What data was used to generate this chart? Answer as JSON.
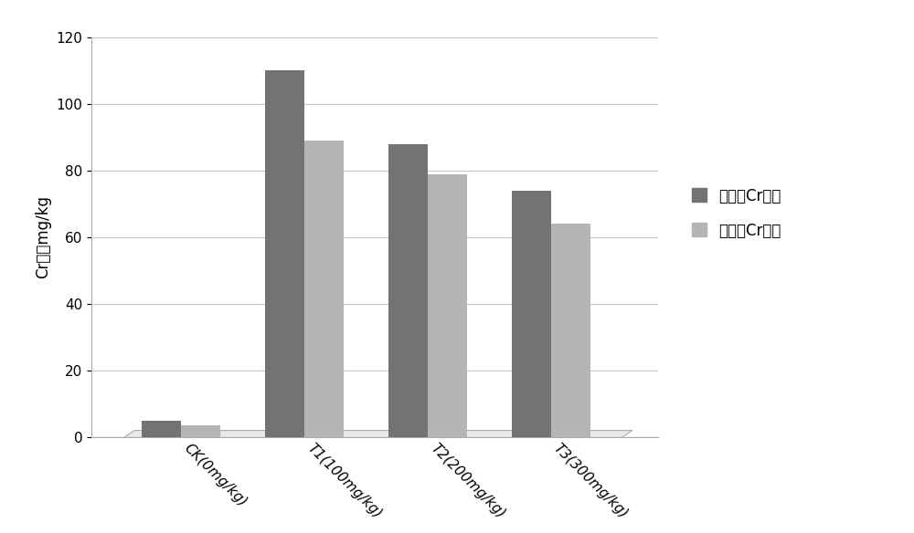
{
  "categories": [
    "CK(0mg/kg)",
    "T1(100mg/kg)",
    "T2(200mg/kg)",
    "T3(300mg/kg)"
  ],
  "series1_label": "地上部Cr含量",
  "series2_label": "地下部Cr含量",
  "series1_values": [
    5.0,
    110.0,
    88.0,
    74.0
  ],
  "series2_values": [
    3.5,
    89.0,
    79.0,
    64.0
  ],
  "series1_color": "#737373",
  "series2_color": "#b5b5b5",
  "ylabel": "Cr含量mg/kg",
  "ylim": [
    0,
    120
  ],
  "yticks": [
    0,
    20,
    40,
    60,
    80,
    100,
    120
  ],
  "background_color": "#ffffff",
  "bar_width": 0.32,
  "grid_color": "#c8c8c8",
  "legend_fontsize": 12,
  "tick_label_fontsize": 11,
  "ylabel_fontsize": 12,
  "fig_width": 10.0,
  "fig_height": 5.84
}
